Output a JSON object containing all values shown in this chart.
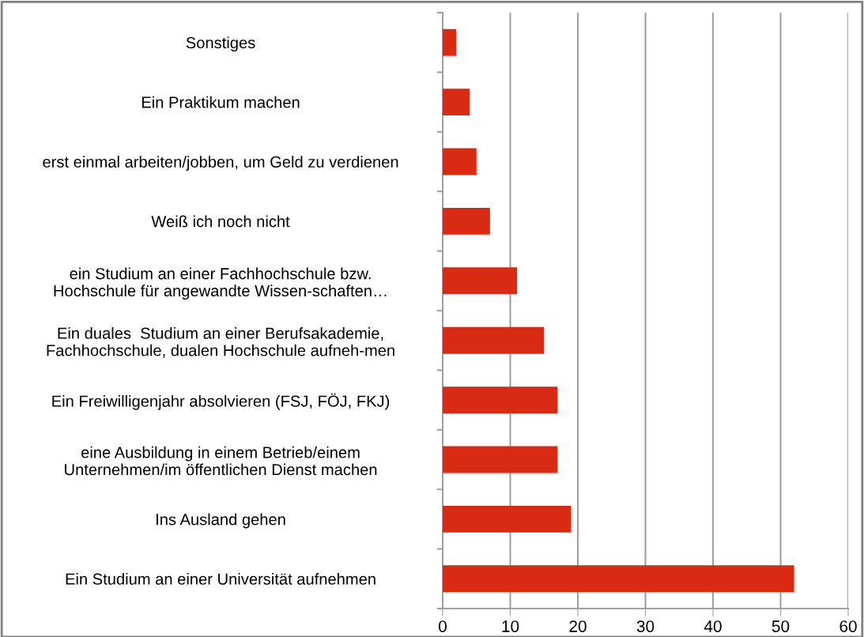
{
  "chart_data": {
    "type": "bar",
    "orientation": "horizontal",
    "categories": [
      "Sonstiges",
      "Ein Praktikum machen",
      "erst einmal arbeiten/jobben, um Geld zu verdienen",
      "Weiß ich noch nicht",
      "ein Studium an einer Fachhochschule bzw.\nHochschule für angewandte Wissen-schaften…",
      "Ein duales  Studium an einer Berufsakademie,\nFachhochschule, dualen Hochschule aufneh-men",
      "Ein Freiwilligenjahr absolvieren (FSJ, FÖJ, FKJ)",
      "eine Ausbildung in einem Betrieb/einem\nUnternehmen/im öffentlichen Dienst machen",
      "Ins Ausland gehen",
      "Ein Studium an einer Universität aufnehmen"
    ],
    "values": [
      2,
      4,
      5,
      7,
      11,
      15,
      17,
      17,
      19,
      52
    ],
    "color": "#d92a14",
    "xlim": [
      0,
      60
    ],
    "xticks": [
      0,
      10,
      20,
      30,
      40,
      50,
      60
    ],
    "grid": "x",
    "legend": false
  }
}
